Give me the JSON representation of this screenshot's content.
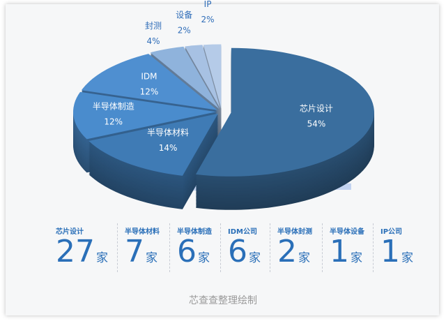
{
  "chart_data": {
    "type": "pie",
    "style": "3d-exploded",
    "categories": [
      "芯片设计",
      "半导体材料",
      "半导体制造",
      "IDM",
      "封测",
      "设备",
      "IP"
    ],
    "values": [
      54,
      14,
      12,
      12,
      4,
      2,
      2
    ],
    "value_labels": [
      "54%",
      "14%",
      "12%",
      "12%",
      "4%",
      "2%",
      "2%"
    ],
    "colors": [
      "#3a6e9e",
      "#3f7bb5",
      "#4a8ccd",
      "#4f8fd0",
      "#8fb3dc",
      "#a7c1e3",
      "#b5cbe8"
    ]
  },
  "watermark": "芯查查",
  "stats": [
    {
      "label": "芯片设计",
      "value": "27",
      "unit": "家"
    },
    {
      "label": "半导体材料",
      "value": "7",
      "unit": "家"
    },
    {
      "label": "半导体制造",
      "value": "6",
      "unit": "家"
    },
    {
      "label": "IDM公司",
      "value": "6",
      "unit": "家"
    },
    {
      "label": "半导体封测",
      "value": "2",
      "unit": "家"
    },
    {
      "label": "半导体设备",
      "value": "1",
      "unit": "家"
    },
    {
      "label": "IP公司",
      "value": "1",
      "unit": "家"
    }
  ],
  "credit": "芯查查整理绘制"
}
